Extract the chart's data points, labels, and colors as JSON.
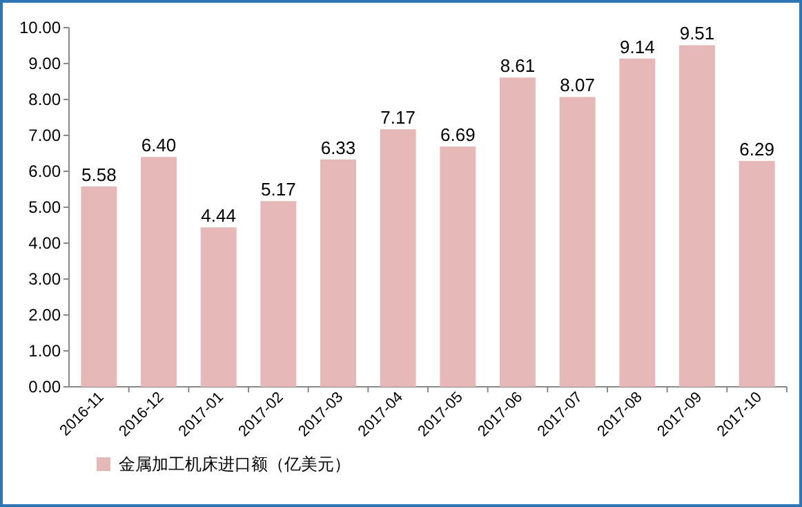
{
  "chart_data": {
    "type": "bar",
    "categories": [
      "2016-11",
      "2016-12",
      "2017-01",
      "2017-02",
      "2017-03",
      "2017-04",
      "2017-05",
      "2017-06",
      "2017-07",
      "2017-08",
      "2017-09",
      "2017-10"
    ],
    "series": [
      {
        "name": "金属加工机床进口额（亿美元）",
        "color": "#e6b9b8",
        "values": [
          5.58,
          6.4,
          4.44,
          5.17,
          6.33,
          7.17,
          6.69,
          8.61,
          8.07,
          9.14,
          9.51,
          6.29
        ]
      }
    ],
    "value_labels": [
      "5.58",
      "6.40",
      "4.44",
      "5.17",
      "6.33",
      "7.17",
      "6.69",
      "8.61",
      "8.07",
      "9.14",
      "9.51",
      "6.29"
    ],
    "ylim": [
      0,
      10
    ],
    "yticks": [
      {
        "value": 0,
        "label": "0.00"
      },
      {
        "value": 1,
        "label": "1.00"
      },
      {
        "value": 2,
        "label": "2.00"
      },
      {
        "value": 3,
        "label": "3.00"
      },
      {
        "value": 4,
        "label": "4.00"
      },
      {
        "value": 5,
        "label": "5.00"
      },
      {
        "value": 6,
        "label": "6.00"
      },
      {
        "value": 7,
        "label": "7.00"
      },
      {
        "value": 8,
        "label": "8.00"
      },
      {
        "value": 9,
        "label": "9.00"
      },
      {
        "value": 10,
        "label": "10.00"
      }
    ],
    "grid": false,
    "legend": "bottom left"
  }
}
